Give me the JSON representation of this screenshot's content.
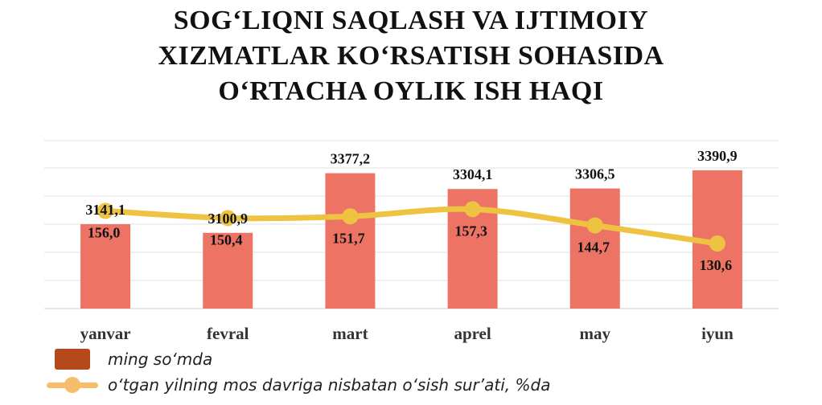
{
  "title_lines": [
    "SOG‘LIQNI SAQLASH VA IJTIMOIY",
    "XIZMATLAR KO‘RSATISH SOHASIDA",
    "O‘RTACHA OYLIK ISH HAQI"
  ],
  "legend": {
    "bar_label": "ming so‘mda",
    "line_label": "o‘tgan yilning mos davriga nisbatan o‘sish sur’ati, %da"
  },
  "chart_data": {
    "type": "bar",
    "title": "SOG‘LIQNI SAQLASH VA IJTIMOIY XIZMATLAR KO‘RSATISH SOHASIDA O‘RTACHA OYLIK ISH HAQI",
    "categories": [
      "yanvar",
      "fevral",
      "mart",
      "aprel",
      "may",
      "iyun"
    ],
    "series": [
      {
        "name": "ming so‘mda",
        "type": "bar",
        "values": [
          3141.1,
          3100.9,
          3377.2,
          3304.1,
          3306.5,
          3390.9
        ],
        "labels": [
          "3141,1",
          "3100,9",
          "3377,2",
          "3304,1",
          "3306,5",
          "3390,9"
        ],
        "color": "#ed7464"
      },
      {
        "name": "o‘tgan yilning mos davriga nisbatan o‘sish sur’ati, %da",
        "type": "line",
        "values": [
          156.0,
          150.4,
          151.7,
          157.3,
          144.7,
          130.6
        ],
        "labels": [
          "156,0",
          "150,4",
          "151,7",
          "157,3",
          "144,7",
          "130,6"
        ],
        "color": "#eec342"
      }
    ],
    "grid": true,
    "legend_position": "bottom-left",
    "xlabel": "",
    "ylabel": ""
  }
}
